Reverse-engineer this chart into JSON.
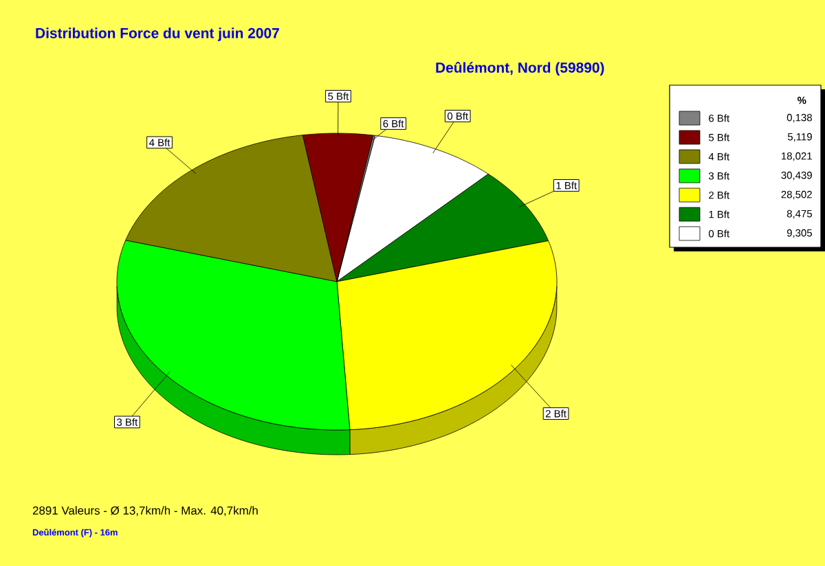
{
  "chart_data": {
    "type": "pie",
    "title": "Distribution Force du vent  juin 2007",
    "subtitle": "Deûlémont, Nord (59890)",
    "categories": [
      "0 Bft",
      "1 Bft",
      "2 Bft",
      "3 Bft",
      "4 Bft",
      "5 Bft",
      "6 Bft"
    ],
    "values": [
      9.305,
      8.475,
      28.502,
      30.439,
      18.021,
      5.119,
      0.138
    ],
    "colors": [
      "#ffffff",
      "#008000",
      "#ffff00",
      "#00ff00",
      "#808000",
      "#800000",
      "#808080"
    ],
    "value_labels": [
      "9,305",
      "8,475",
      "28,502",
      "30,439",
      "18,021",
      "5,119",
      "0,138"
    ],
    "legend": "top right",
    "legend_title": "%",
    "annotations": [
      "2891 Valeurs   -   Ø 13,7km/h  -  Max. 40,7km/h",
      "Deûlémont (F) - 16m"
    ]
  }
}
